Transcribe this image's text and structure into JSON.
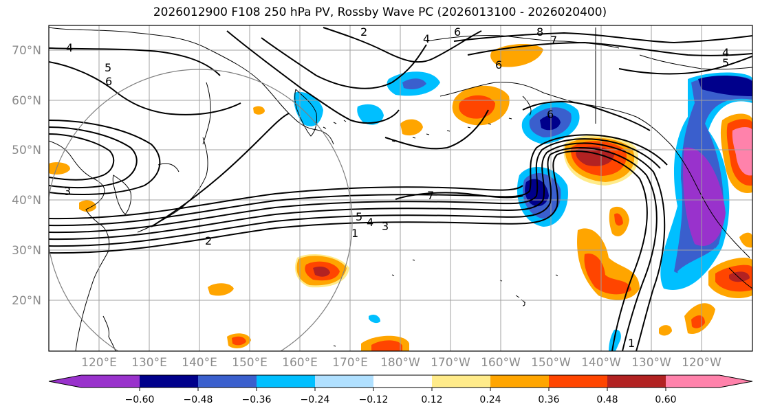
{
  "title": "2026012900 F108 250 hPa PV, Rossby Wave PC (2026013100 - 2026020400)",
  "map": {
    "lat_labels": [
      "70°N",
      "60°N",
      "50°N",
      "40°N",
      "30°N",
      "20°N"
    ],
    "lon_labels": [
      "120°E",
      "130°E",
      "140°E",
      "150°E",
      "160°E",
      "170°E",
      "180°W",
      "170°W",
      "160°W",
      "150°W",
      "140°W",
      "130°W",
      "120°W"
    ],
    "contour_labels": [
      "1",
      "2",
      "3",
      "4",
      "5",
      "6",
      "7",
      "8"
    ]
  },
  "colorbar": {
    "tick_labels": [
      "−0.60",
      "−0.48",
      "−0.36",
      "−0.24",
      "−0.12",
      "0.12",
      "0.24",
      "0.36",
      "0.48",
      "0.60"
    ],
    "colors": [
      "#9932cc",
      "#00008b",
      "#3a5fcd",
      "#00bfff",
      "#b0e0ff",
      "#ffffff",
      "#ffeb8a",
      "#ffa500",
      "#ff4500",
      "#b22222",
      "#ff82ab"
    ]
  }
}
